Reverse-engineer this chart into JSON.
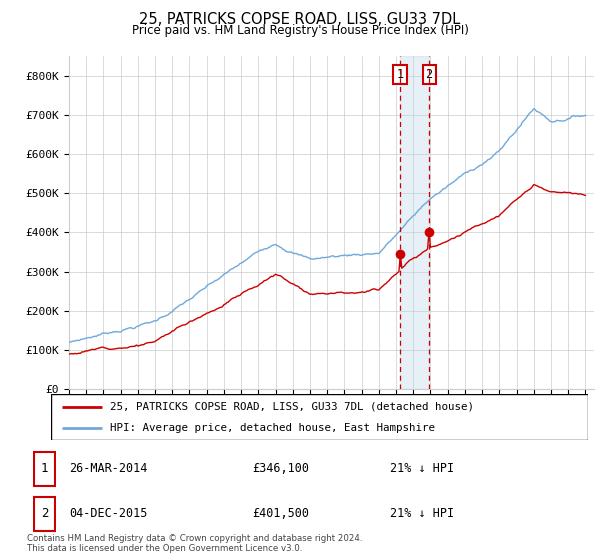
{
  "title": "25, PATRICKS COPSE ROAD, LISS, GU33 7DL",
  "subtitle": "Price paid vs. HM Land Registry's House Price Index (HPI)",
  "legend_line1": "25, PATRICKS COPSE ROAD, LISS, GU33 7DL (detached house)",
  "legend_line2": "HPI: Average price, detached house, East Hampshire",
  "transaction1_date": "26-MAR-2014",
  "transaction1_price": "£346,100",
  "transaction1_hpi": "21% ↓ HPI",
  "transaction2_date": "04-DEC-2015",
  "transaction2_price": "£401,500",
  "transaction2_hpi": "21% ↓ HPI",
  "footer": "Contains HM Land Registry data © Crown copyright and database right 2024.\nThis data is licensed under the Open Government Licence v3.0.",
  "hpi_color": "#6fa8dc",
  "price_color": "#cc0000",
  "ylim_min": 0,
  "ylim_max": 850000,
  "yticks": [
    0,
    100000,
    200000,
    300000,
    400000,
    500000,
    600000,
    700000,
    800000
  ],
  "ytick_labels": [
    "£0",
    "£100K",
    "£200K",
    "£300K",
    "£400K",
    "£500K",
    "£600K",
    "£700K",
    "£800K"
  ],
  "transaction1_x": 2014.23,
  "transaction1_y": 346100,
  "transaction2_x": 2015.92,
  "transaction2_y": 401500,
  "shade_xmin": 2014.23,
  "shade_xmax": 2015.92,
  "vline1_x": 2014.23,
  "vline2_x": 2015.92,
  "xmin": 1995,
  "xmax": 2025.5
}
